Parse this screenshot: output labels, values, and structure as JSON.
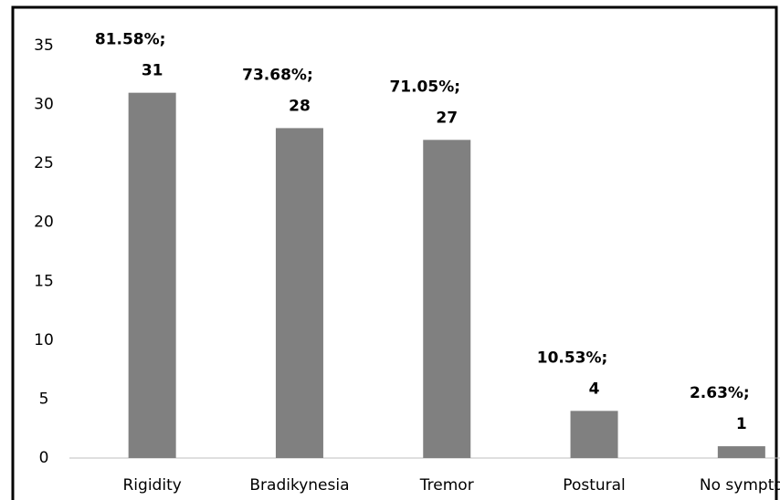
{
  "chart_data": {
    "type": "bar",
    "categories": [
      "Rigidity",
      "Bradikynesia",
      "Tremor",
      "Postural",
      "No sympto"
    ],
    "values": [
      31,
      28,
      27,
      4,
      1
    ],
    "percent_labels": [
      "81.58%;",
      "73.68%;",
      "71.05%;",
      "10.53%;",
      "2.63%;"
    ],
    "color": "#808080",
    "ylim": [
      0,
      35
    ],
    "yticks": [
      0,
      5,
      10,
      15,
      20,
      25,
      30,
      35
    ],
    "grid": false
  }
}
